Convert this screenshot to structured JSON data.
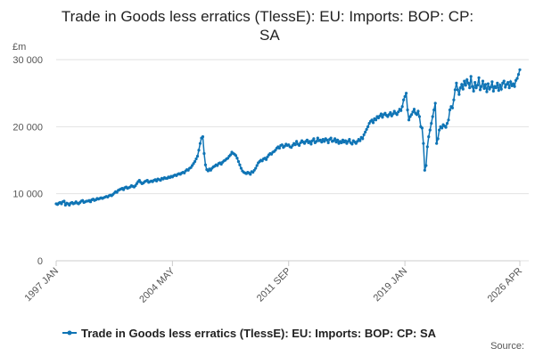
{
  "chart_data": {
    "type": "line",
    "title": "Trade in Goods less erratics (TlessE): EU: Imports: BOP: CP: SA",
    "y_label": "£m",
    "source": "Source:",
    "categories": [
      "1997 JAN",
      null,
      null,
      null,
      null,
      null,
      null,
      null,
      null,
      null,
      null,
      null,
      null,
      null,
      null,
      null,
      null,
      null,
      null,
      null,
      null,
      null,
      null,
      null,
      null,
      null,
      null,
      null,
      null,
      null,
      null,
      null,
      null,
      null,
      null,
      null,
      null,
      null,
      null,
      null,
      null,
      null,
      null,
      null,
      null,
      null,
      null,
      null,
      null,
      null,
      null,
      null,
      null,
      null,
      null,
      null,
      null,
      null,
      null,
      null,
      null,
      null,
      null,
      null,
      null,
      null,
      null,
      null,
      null,
      null,
      null,
      null,
      null,
      null,
      null,
      null,
      null,
      null,
      null,
      null,
      null,
      null,
      null,
      null,
      null,
      null,
      null,
      null,
      "2004 MAY",
      null,
      null,
      null,
      null,
      null,
      null,
      null,
      null,
      null,
      null,
      null,
      null,
      null,
      null,
      null,
      null,
      null,
      null,
      null,
      null,
      null,
      null,
      null,
      null,
      null,
      null,
      null,
      null,
      null,
      null,
      null,
      null,
      null,
      null,
      null,
      null,
      null,
      null,
      null,
      null,
      null,
      null,
      null,
      null,
      null,
      null,
      null,
      null,
      null,
      null,
      null,
      null,
      null,
      null,
      null,
      null,
      null,
      null,
      null,
      null,
      null,
      null,
      null,
      null,
      null,
      null,
      null,
      null,
      null,
      null,
      null,
      null,
      null,
      null,
      null,
      null,
      null,
      null,
      null,
      null,
      null,
      null,
      null,
      null,
      null,
      null,
      null,
      "2011 SEP",
      null,
      null,
      null,
      null,
      null,
      null,
      null,
      null,
      null,
      null,
      null,
      null,
      null,
      null,
      null,
      null,
      null,
      null,
      null,
      null,
      null,
      null,
      null,
      null,
      null,
      null,
      null,
      null,
      null,
      null,
      null,
      null,
      null,
      null,
      null,
      null,
      null,
      null,
      null,
      null,
      null,
      null,
      null,
      null,
      null,
      null,
      null,
      null,
      null,
      null,
      null,
      null,
      null,
      null,
      null,
      null,
      null,
      null,
      null,
      null,
      null,
      null,
      null,
      null,
      null,
      null,
      null,
      null,
      null,
      null,
      null,
      null,
      null,
      null,
      null,
      null,
      null,
      null,
      null,
      null,
      null,
      null,
      null,
      null,
      null,
      null,
      null,
      "2019 JAN",
      null,
      null,
      null,
      null,
      null,
      null,
      null,
      null,
      null,
      null,
      null,
      null,
      null,
      null,
      null,
      null,
      null,
      null,
      null,
      null,
      null,
      null,
      null,
      null,
      null,
      null,
      null,
      null,
      null,
      null,
      null,
      null,
      null,
      null,
      null,
      null,
      null,
      null,
      null,
      null,
      null,
      null,
      null,
      null,
      null,
      null,
      null,
      null,
      null,
      null,
      null,
      null,
      null,
      null,
      null,
      null,
      null,
      null,
      null,
      null,
      null,
      null,
      null,
      null,
      null,
      null,
      null,
      null,
      null,
      null,
      null,
      null,
      null,
      null,
      null,
      null,
      null,
      null,
      null,
      null,
      null,
      null,
      null,
      null,
      null,
      null,
      "2026 APR"
    ],
    "series": [
      {
        "name": "Trade in Goods less erratics (TlessE): EU: Imports: BOP: CP: SA",
        "color": "#0f74b5",
        "values": [
          8500,
          8400,
          8600,
          8700,
          8500,
          8800,
          8900,
          8300,
          8600,
          8500,
          8300,
          8600,
          8700,
          8500,
          8600,
          8800,
          8600,
          8500,
          8700,
          8900,
          9000,
          8700,
          8800,
          8900,
          8900,
          9000,
          8800,
          9100,
          9200,
          9000,
          9100,
          9300,
          9200,
          9300,
          9400,
          9300,
          9400,
          9500,
          9600,
          9500,
          9700,
          9800,
          9700,
          9900,
          10100,
          10300,
          10200,
          10500,
          10600,
          10700,
          10800,
          10600,
          10900,
          11000,
          10800,
          10900,
          11000,
          11200,
          11100,
          11000,
          11200,
          11500,
          11800,
          12000,
          11700,
          11500,
          11600,
          11800,
          11900,
          12000,
          11700,
          11800,
          11900,
          11800,
          12000,
          12100,
          11900,
          12200,
          12100,
          12000,
          12300,
          12200,
          12400,
          12300,
          12300,
          12500,
          12400,
          12600,
          12500,
          12700,
          12800,
          12700,
          12900,
          13000,
          12900,
          13100,
          13200,
          13100,
          13400,
          13600,
          13500,
          13800,
          13900,
          14200,
          14500,
          14800,
          15200,
          15600,
          16500,
          17500,
          18300,
          18500,
          16000,
          14300,
          13600,
          13400,
          13700,
          13500,
          13800,
          14000,
          14100,
          14300,
          14200,
          14500,
          14600,
          14400,
          14700,
          14900,
          15000,
          15200,
          15300,
          15600,
          15800,
          16200,
          16000,
          15900,
          15700,
          15300,
          14800,
          14300,
          13800,
          13400,
          13200,
          13100,
          13000,
          13200,
          13100,
          12900,
          13300,
          13200,
          13500,
          13800,
          14200,
          14600,
          14800,
          15000,
          14900,
          15200,
          15300,
          15100,
          15500,
          15800,
          16000,
          15900,
          16200,
          16300,
          16500,
          16800,
          17000,
          16800,
          17200,
          17300,
          16900,
          17100,
          17400,
          17200,
          17300,
          17000,
          16900,
          17200,
          17500,
          17300,
          17800,
          17400,
          17200,
          17600,
          17900,
          17700,
          17500,
          17800,
          18000,
          17600,
          17800,
          17400,
          17900,
          18200,
          17600,
          17800,
          18300,
          17900,
          18000,
          17700,
          18100,
          17800,
          18200,
          18000,
          17600,
          18100,
          18300,
          17800,
          17900,
          18200,
          17700,
          18000,
          17500,
          17800,
          17600,
          18000,
          17700,
          17900,
          17500,
          17800,
          18100,
          17600,
          17400,
          17900,
          17700,
          17500,
          17800,
          18100,
          17900,
          18400,
          18200,
          18800,
          19200,
          19600,
          20000,
          20500,
          20800,
          21000,
          20600,
          21200,
          21000,
          21500,
          21300,
          21600,
          21900,
          21400,
          21800,
          22000,
          21700,
          21500,
          21800,
          22100,
          21600,
          21900,
          22300,
          22000,
          21800,
          22200,
          22600,
          22400,
          23000,
          24000,
          24500,
          25000,
          22500,
          21000,
          21500,
          21800,
          22200,
          22600,
          22000,
          21800,
          22300,
          21500,
          20000,
          19800,
          17500,
          13500,
          14200,
          17000,
          18500,
          19500,
          20500,
          21500,
          22500,
          23500,
          17500,
          18200,
          19500,
          20000,
          19800,
          20300,
          20100,
          19900,
          20500,
          21000,
          22500,
          23000,
          22800,
          24000,
          25500,
          26500,
          25500,
          24800,
          25800,
          26300,
          25600,
          26800,
          26200,
          27000,
          26500,
          25800,
          27500,
          26000,
          25300,
          26600,
          25800,
          26200,
          27300,
          25500,
          26000,
          26800,
          25700,
          26300,
          25200,
          26400,
          25600,
          25900,
          26700,
          25300,
          26000,
          25800,
          26500,
          25400,
          26200,
          25600,
          26500,
          26800,
          25900,
          26300,
          26600,
          25800,
          26700,
          26100,
          26400,
          26000,
          26900,
          27200,
          27800,
          28500
        ]
      }
    ],
    "ylim": [
      0,
      30000
    ],
    "yticks": [
      {
        "value": 0,
        "label": "0"
      },
      {
        "value": 10000,
        "label": "10 000"
      },
      {
        "value": 20000,
        "label": "20 000"
      },
      {
        "value": 30000,
        "label": "30 000"
      }
    ],
    "grid": true
  }
}
